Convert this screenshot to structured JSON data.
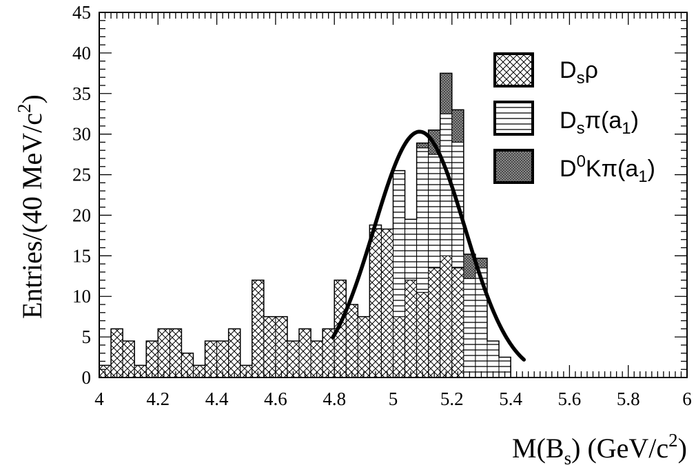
{
  "chart_data": {
    "type": "bar",
    "subtype": "stacked-histogram",
    "xlabel": {
      "main": "M(B",
      "sub": "s",
      "tail": ") (GeV/c",
      "sup": "2",
      "end": ")"
    },
    "ylabel": {
      "main": "Entries/(40 MeV/c",
      "sup": "2",
      "end": ")"
    },
    "xlim": [
      4,
      6
    ],
    "ylim": [
      0,
      45
    ],
    "bin_width": 0.04,
    "x_ticks": [
      "4",
      "4.2",
      "4.4",
      "4.6",
      "4.8",
      "5",
      "5.2",
      "5.4",
      "5.6",
      "5.8",
      "6"
    ],
    "y_ticks": [
      "0",
      "5",
      "10",
      "15",
      "20",
      "25",
      "30",
      "35",
      "40",
      "45"
    ],
    "bin_low_edges": [
      4.0,
      4.04,
      4.08,
      4.12,
      4.16,
      4.2,
      4.24,
      4.28,
      4.32,
      4.36,
      4.4,
      4.44,
      4.48,
      4.52,
      4.56,
      4.6,
      4.64,
      4.68,
      4.72,
      4.76,
      4.8,
      4.84,
      4.88,
      4.92,
      4.96,
      5.0,
      5.04,
      5.08,
      5.12,
      5.16,
      5.2,
      5.24,
      5.28,
      5.32,
      5.36,
      5.4
    ],
    "series": [
      {
        "name": "D_sρ",
        "pattern": "crosshatch",
        "values": [
          1.5,
          6,
          4.5,
          1.5,
          4.5,
          6,
          6,
          3,
          1.5,
          4.5,
          4.5,
          6,
          1.5,
          12,
          7.5,
          7.5,
          4.5,
          6,
          4.5,
          6,
          12,
          9,
          7.5,
          18.3,
          18.3,
          7.5,
          12,
          10.5,
          13.5,
          15,
          13.5,
          0,
          0,
          0,
          0,
          0
        ]
      },
      {
        "name": "D_sπ(a_1)",
        "pattern": "horizontal-lines",
        "values": [
          0,
          0,
          0,
          0,
          0,
          0,
          0,
          0,
          0,
          0,
          0,
          0,
          0,
          0,
          0,
          0,
          0,
          0,
          0,
          0,
          0,
          0,
          0,
          0.5,
          0,
          18,
          7.5,
          17.8,
          14,
          17.5,
          15.5,
          12.2,
          13.5,
          4.5,
          2.5,
          0
        ]
      },
      {
        "name": "D⁰Kπ(a_1)",
        "pattern": "dark-dots",
        "values": [
          0,
          0,
          0,
          0,
          0,
          0,
          0,
          0,
          0,
          0,
          0,
          0,
          0,
          0,
          0,
          0,
          0,
          0,
          0,
          0,
          0,
          0,
          0,
          0,
          0,
          0,
          0,
          0.6,
          3,
          5,
          4,
          3,
          1.2,
          0,
          0,
          0
        ]
      }
    ],
    "fit_curve": {
      "type": "gaussian",
      "amplitude": 30.3,
      "mean": 5.09,
      "sigma": 0.155,
      "x_range": [
        4.795,
        5.445
      ]
    },
    "legend_position": "top-right",
    "grid": false
  },
  "legend": [
    {
      "key": "dsrho",
      "main": "D",
      "sub": "s",
      "tail": "ρ"
    },
    {
      "key": "dspi",
      "main": "D",
      "sub": "s",
      "tail": "π(a",
      "sub2": "1",
      "end": ")"
    },
    {
      "key": "d0kpi",
      "main": "D",
      "sup": "0",
      "tail": "Kπ(a",
      "sub2": "1",
      "end": ")"
    }
  ],
  "colors": {
    "ink": "#000000",
    "dark_fill": "#6e6e6e",
    "background": "#ffffff"
  }
}
